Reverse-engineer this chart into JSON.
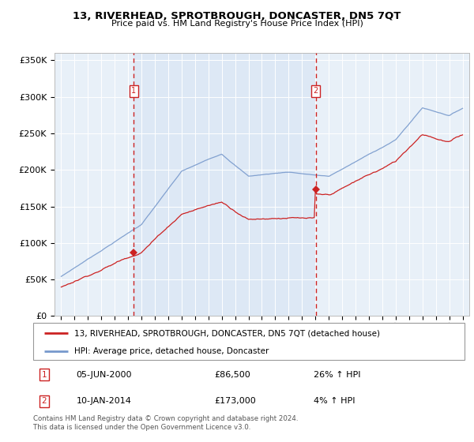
{
  "title": "13, RIVERHEAD, SPROTBROUGH, DONCASTER, DN5 7QT",
  "subtitle": "Price paid vs. HM Land Registry's House Price Index (HPI)",
  "hpi_label": "HPI: Average price, detached house, Doncaster",
  "property_label": "13, RIVERHEAD, SPROTBROUGH, DONCASTER, DN5 7QT (detached house)",
  "transaction1": {
    "label": "1",
    "date": "05-JUN-2000",
    "price": 86500,
    "hpi_change": "26% ↑ HPI"
  },
  "transaction2": {
    "label": "2",
    "date": "10-JAN-2014",
    "price": 173000,
    "hpi_change": "4% ↑ HPI"
  },
  "vline1_year": 2000.43,
  "vline2_year": 2014.03,
  "dot1_year": 2000.43,
  "dot1_price": 86500,
  "dot2_year": 2014.03,
  "dot2_price": 173000,
  "ylim": [
    0,
    360000
  ],
  "yticks": [
    0,
    50000,
    100000,
    150000,
    200000,
    250000,
    300000,
    350000
  ],
  "ytick_labels": [
    "£0",
    "£50K",
    "£100K",
    "£150K",
    "£200K",
    "£250K",
    "£300K",
    "£350K"
  ],
  "xlim_start": 1994.5,
  "xlim_end": 2025.5,
  "plot_bg": "#e8f0f8",
  "shade_bg": "#dde8f5",
  "grid_color": "#ffffff",
  "red_line_color": "#cc2222",
  "blue_line_color": "#7799cc",
  "footer": "Contains HM Land Registry data © Crown copyright and database right 2024.\nThis data is licensed under the Open Government Licence v3.0.",
  "xtick_years": [
    1995,
    1996,
    1997,
    1998,
    1999,
    2000,
    2001,
    2002,
    2003,
    2004,
    2005,
    2006,
    2007,
    2008,
    2009,
    2010,
    2011,
    2012,
    2013,
    2014,
    2015,
    2016,
    2017,
    2018,
    2019,
    2020,
    2021,
    2022,
    2023,
    2024,
    2025
  ]
}
